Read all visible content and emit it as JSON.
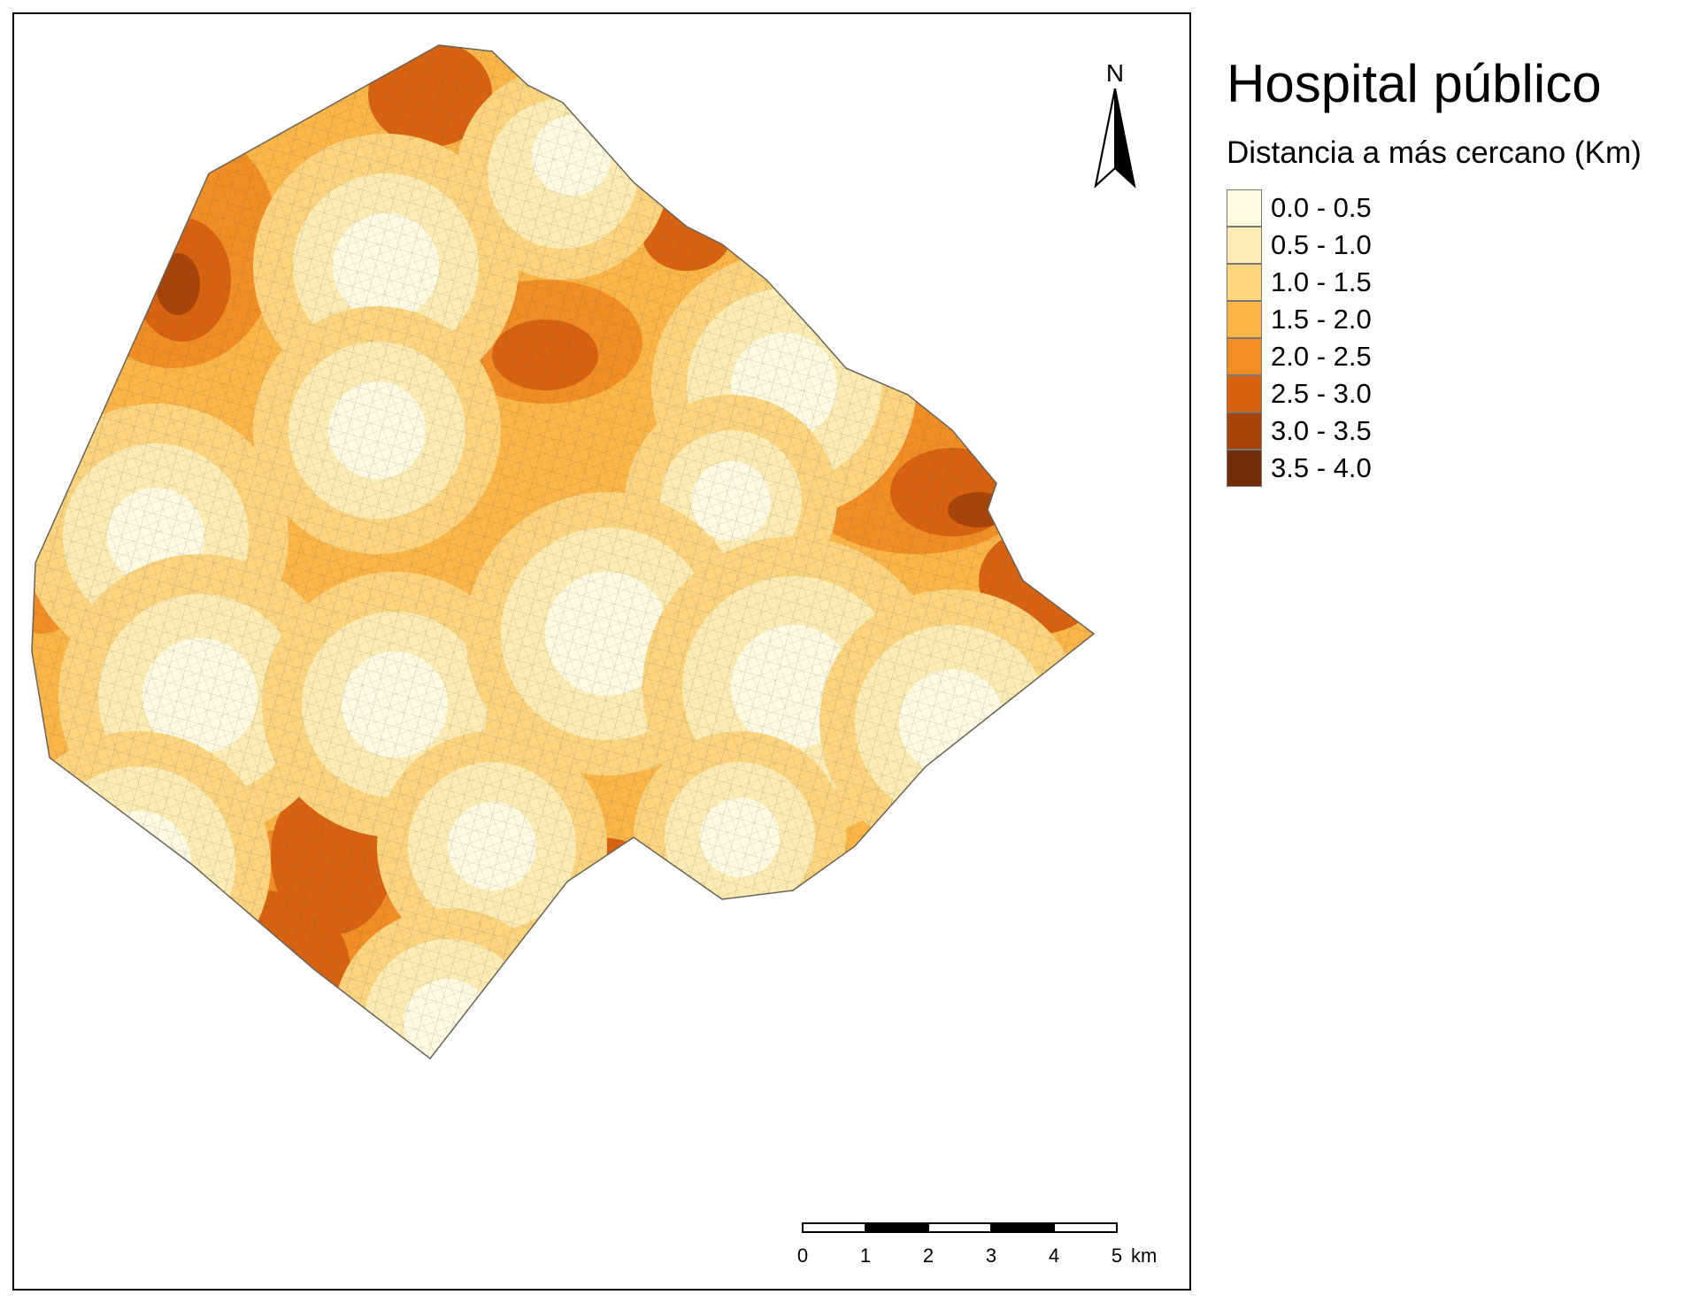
{
  "legend": {
    "title": "Hospital público",
    "subtitle": "Distancia a más cercano (Km)",
    "classes": [
      {
        "label": "0.0 - 0.5",
        "color": "#fffbe3"
      },
      {
        "label": "0.5 - 1.0",
        "color": "#fdedb4"
      },
      {
        "label": "1.0 - 1.5",
        "color": "#fdd57f"
      },
      {
        "label": "1.5 - 2.0",
        "color": "#fbb647"
      },
      {
        "label": "2.0 - 2.5",
        "color": "#f38e25"
      },
      {
        "label": "2.5 - 3.0",
        "color": "#d9620f"
      },
      {
        "label": "3.0 - 3.5",
        "color": "#a84308"
      },
      {
        "label": "3.5 - 4.0",
        "color": "#702d08"
      }
    ]
  },
  "north_arrow": {
    "label": "N"
  },
  "scalebar": {
    "ticks": [
      "0",
      "1",
      "2",
      "3",
      "4",
      "5"
    ],
    "unit": "km"
  }
}
